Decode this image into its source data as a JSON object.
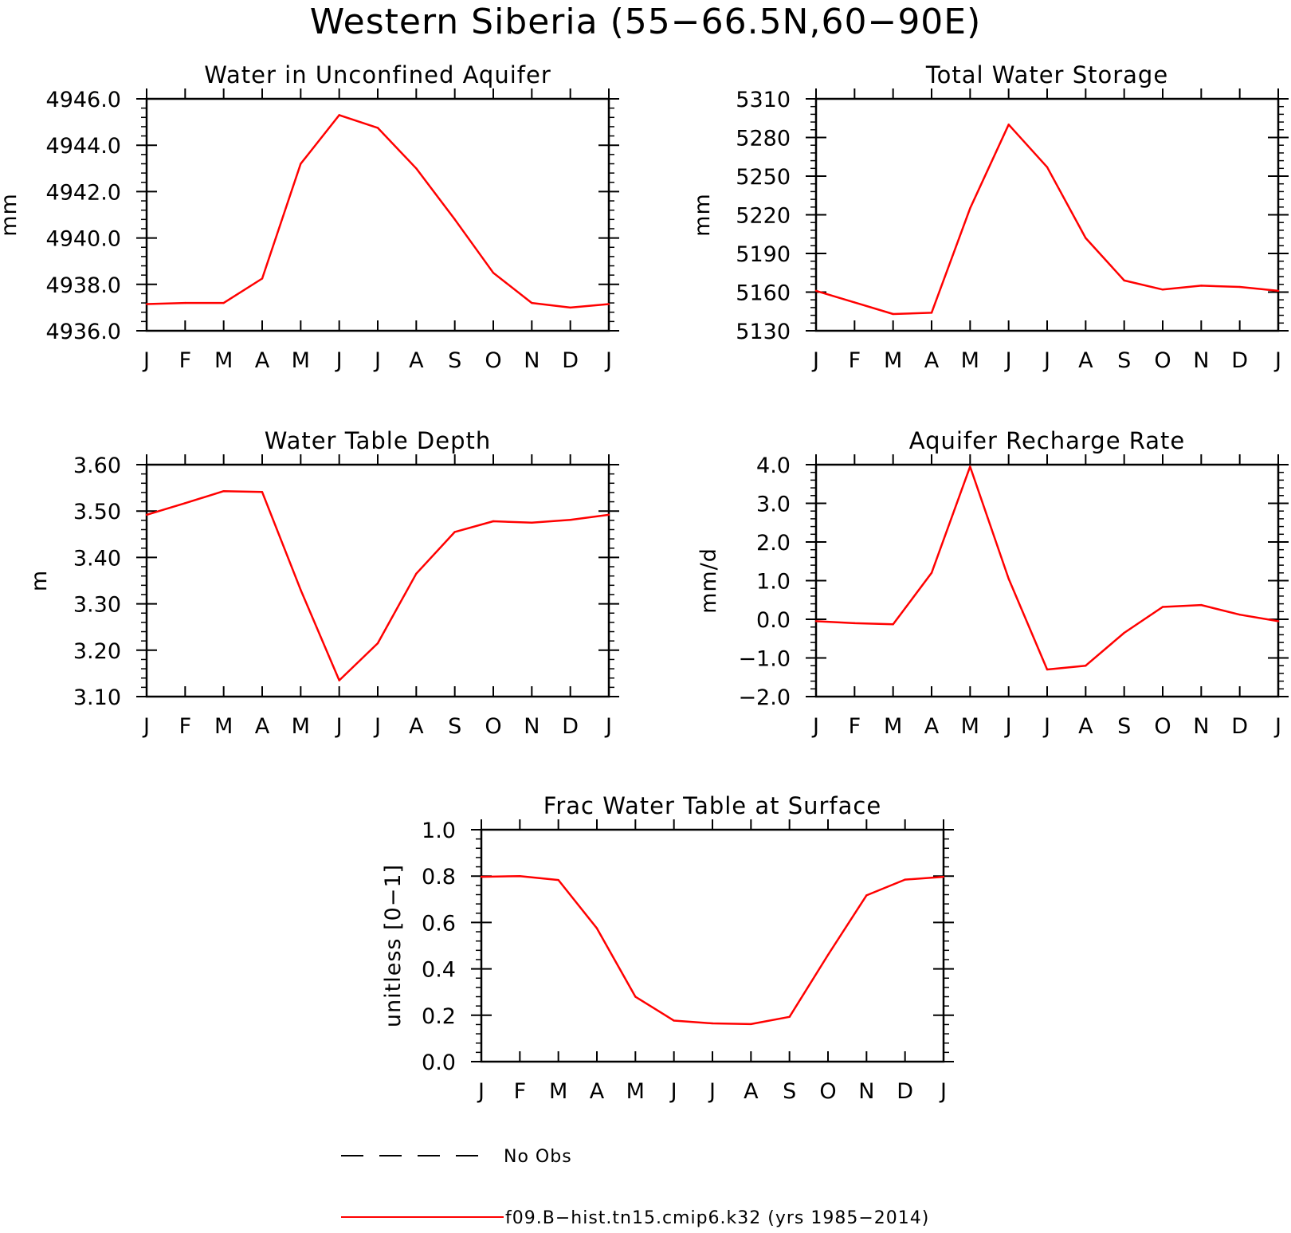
{
  "figure": {
    "title": "Western Siberia (55−66.5N,60−90E)",
    "legend": {
      "items": [
        {
          "label": "No Obs",
          "style": "dashed",
          "color": "#000000"
        },
        {
          "label": "f09.B−hist.tn15.cmip6.k32 (yrs 1985−2014)",
          "style": "solid",
          "color": "#ff0000"
        }
      ]
    }
  },
  "chart_data": [
    {
      "type": "line",
      "title": "Water in Unconfined Aquifer",
      "ylabel": "mm",
      "categories": [
        "J",
        "F",
        "M",
        "A",
        "M",
        "J",
        "J",
        "A",
        "S",
        "O",
        "N",
        "D",
        "J"
      ],
      "ylim": [
        4936.0,
        4946.0
      ],
      "yticks": [
        "4936.0",
        "4938.0",
        "4940.0",
        "4942.0",
        "4944.0",
        "4946.0"
      ],
      "series": [
        {
          "color": "#ff0000",
          "values": [
            4937.15,
            4937.2,
            4937.2,
            4938.25,
            4943.2,
            4945.3,
            4944.75,
            4943.0,
            4940.8,
            4938.5,
            4937.2,
            4937.0,
            4937.15
          ]
        }
      ]
    },
    {
      "type": "line",
      "title": "Total Water Storage",
      "ylabel": "mm",
      "categories": [
        "J",
        "F",
        "M",
        "A",
        "M",
        "J",
        "J",
        "A",
        "S",
        "O",
        "N",
        "D",
        "J"
      ],
      "ylim": [
        5130,
        5310
      ],
      "yticks": [
        "5130",
        "5160",
        "5190",
        "5220",
        "5250",
        "5280",
        "5310"
      ],
      "series": [
        {
          "color": "#ff0000",
          "values": [
            5161,
            5152,
            5143,
            5144,
            5225,
            5290,
            5257,
            5202,
            5169,
            5162,
            5165,
            5164,
            5161
          ]
        }
      ]
    },
    {
      "type": "line",
      "title": "Water Table Depth",
      "ylabel": "m",
      "categories": [
        "J",
        "F",
        "M",
        "A",
        "M",
        "J",
        "J",
        "A",
        "S",
        "O",
        "N",
        "D",
        "J"
      ],
      "ylim": [
        3.1,
        3.6
      ],
      "yticks": [
        "3.10",
        "3.20",
        "3.30",
        "3.40",
        "3.50",
        "3.60"
      ],
      "series": [
        {
          "color": "#ff0000",
          "values": [
            3.492,
            3.517,
            3.543,
            3.541,
            3.33,
            3.135,
            3.215,
            3.365,
            3.455,
            3.478,
            3.475,
            3.481,
            3.492
          ]
        }
      ]
    },
    {
      "type": "line",
      "title": "Aquifer Recharge Rate",
      "ylabel": "mm/d",
      "categories": [
        "J",
        "F",
        "M",
        "A",
        "M",
        "J",
        "J",
        "A",
        "S",
        "O",
        "N",
        "D",
        "J"
      ],
      "ylim": [
        -2.0,
        4.0
      ],
      "yticks": [
        "−2.0",
        "−1.0",
        "0.0",
        "1.0",
        "2.0",
        "3.0",
        "4.0"
      ],
      "series": [
        {
          "color": "#ff0000",
          "values": [
            -0.05,
            -0.1,
            -0.13,
            1.2,
            3.95,
            1.05,
            -1.3,
            -1.2,
            -0.35,
            0.32,
            0.37,
            0.12,
            -0.05
          ]
        }
      ]
    },
    {
      "type": "line",
      "title": "Frac Water Table at Surface",
      "ylabel": "unitless [0−1]",
      "categories": [
        "J",
        "F",
        "M",
        "A",
        "M",
        "J",
        "J",
        "A",
        "S",
        "O",
        "N",
        "D",
        "J"
      ],
      "ylim": [
        0.0,
        1.0
      ],
      "yticks": [
        "0.0",
        "0.2",
        "0.4",
        "0.6",
        "0.8",
        "1.0"
      ],
      "series": [
        {
          "color": "#ff0000",
          "values": [
            0.797,
            0.8,
            0.783,
            0.575,
            0.28,
            0.177,
            0.165,
            0.162,
            0.193,
            0.46,
            0.717,
            0.785,
            0.797
          ]
        }
      ]
    }
  ]
}
